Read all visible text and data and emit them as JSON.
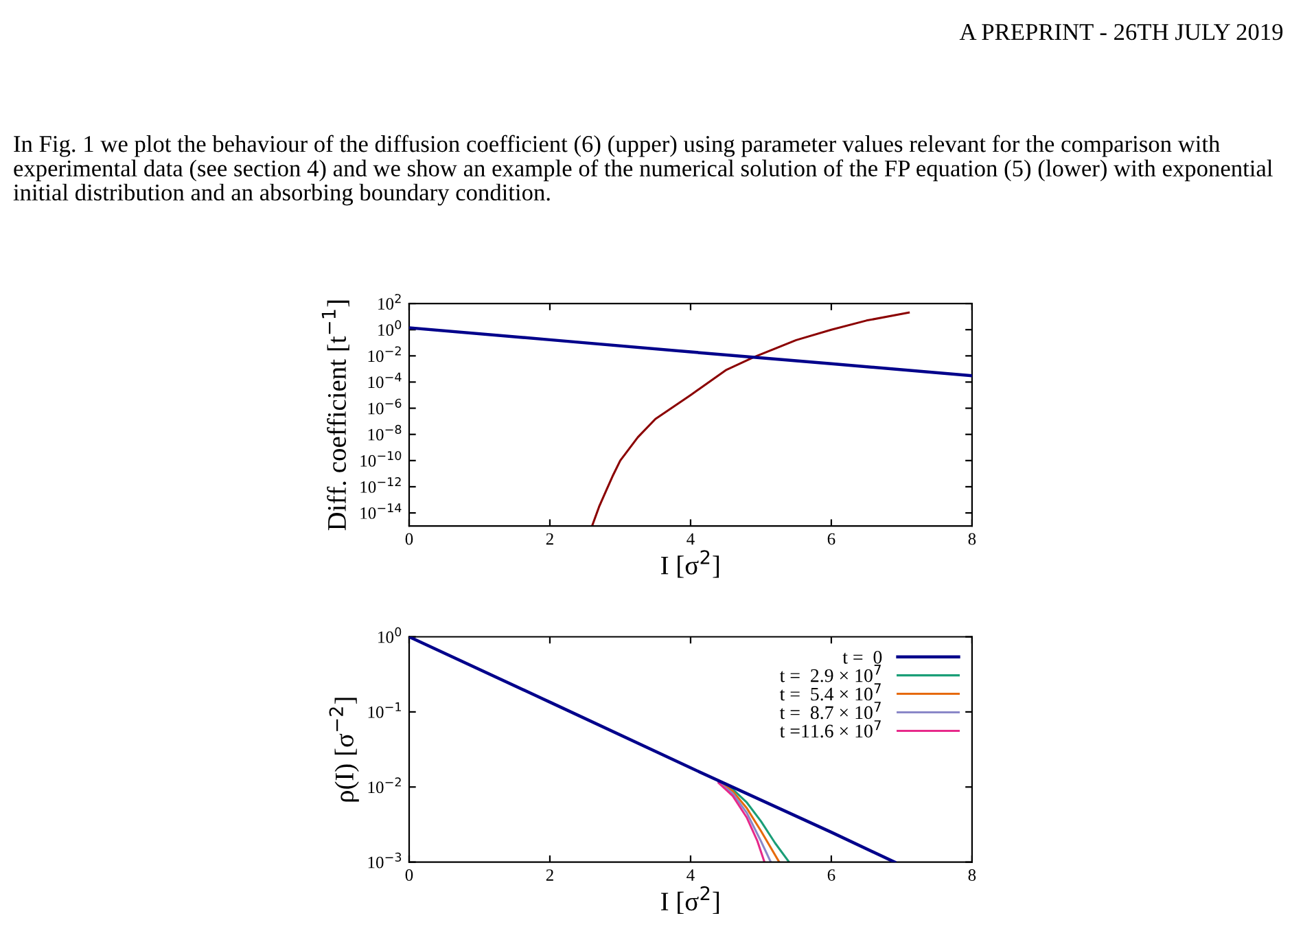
{
  "chart_data": [
    {
      "type": "line",
      "xlabel": "I [σ$^{2}$]",
      "ylabel": "Diff. coefficient [t$^{−1}$]",
      "log": "y",
      "xlim": [
        0,
        8
      ],
      "xticks": [
        0,
        2,
        4,
        6,
        8
      ],
      "ylim": [
        1e-15,
        100
      ],
      "yticks": [
        {
          "value": 100,
          "label": "10$^{2}$"
        },
        {
          "value": 1,
          "label": "10$^{0}$"
        },
        {
          "value": 0.01,
          "label": "10$^{−2}$"
        },
        {
          "value": 0.0001,
          "label": "10$^{−4}$"
        },
        {
          "value": 1e-06,
          "label": "10$^{−6}$"
        },
        {
          "value": 1e-08,
          "label": "10$^{−8}$"
        },
        {
          "value": 1e-10,
          "label": "10$^{−10}$"
        },
        {
          "value": 1e-12,
          "label": "10$^{−12}$"
        },
        {
          "value": 1e-14,
          "label": "10$^{−14}$"
        }
      ],
      "grid": false,
      "legend": false,
      "line_style": "solid",
      "marker": "none",
      "annotations": [
        "A PREPRINT - 26TH JULY 2019",
        "In Fig. 1 we plot the behaviour of the diffusion coefficient (6) (upper) using parameter values relevant for the comparison with experimental data (see section 4) and we show an example of the numerical solution of the FP equation (5) (lower) with exponential initial distribution and an absorbing boundary condition."
      ],
      "series": [
        {
          "color": "#00008b",
          "x": [
            0,
            2,
            4,
            6,
            8
          ],
          "values": [
            1.4,
            0.17,
            0.02,
            0.0025,
            0.0003
          ]
        },
        {
          "color": "#8b0000",
          "x": [
            2.6,
            2.7,
            2.8,
            2.9,
            3.0,
            3.25,
            3.5,
            4.0,
            4.5,
            4.9,
            5.5,
            6.0,
            6.5,
            7.1
          ],
          "values": [
            1e-15,
            3e-14,
            5e-13,
            8e-12,
            1e-10,
            6e-09,
            1.5e-07,
            1e-05,
            0.0008,
            0.008,
            0.16,
            1,
            5,
            20
          ]
        }
      ]
    },
    {
      "type": "line",
      "xlabel": "I [σ$^{2}$]",
      "ylabel": "ρ(I) [σ$^{−2}$]",
      "log": "y",
      "xlim": [
        0,
        8
      ],
      "xticks": [
        0,
        2,
        4,
        6,
        8
      ],
      "ylim": [
        0.001,
        1
      ],
      "yticks": [
        {
          "value": 1,
          "label": "10$^{0}$"
        },
        {
          "value": 0.1,
          "label": "10$^{−1}$"
        },
        {
          "value": 0.01,
          "label": "10$^{−2}$"
        },
        {
          "value": 0.001,
          "label": "10$^{−3}$"
        }
      ],
      "grid": false,
      "legend": "top right",
      "line_style": "solid",
      "marker": "none",
      "series": [
        {
          "name": "t =  0",
          "color": "#00008b",
          "x": [
            0,
            2,
            4,
            6,
            6.9
          ],
          "values": [
            1,
            0.135,
            0.018,
            0.0025,
            0.001
          ]
        },
        {
          "name": "t =  2.9 × 10$^{7}$",
          "color": "#1a9e77",
          "x": [
            4.4,
            4.6,
            4.8,
            5.0,
            5.2,
            5.4
          ],
          "values": [
            0.0117,
            0.0093,
            0.0062,
            0.0035,
            0.0018,
            0.001
          ]
        },
        {
          "name": "t =  5.4 × 10$^{7}$",
          "color": "#e66a0c",
          "x": [
            4.4,
            4.6,
            4.8,
            5.0,
            5.26
          ],
          "values": [
            0.0117,
            0.0088,
            0.0052,
            0.0026,
            0.001
          ]
        },
        {
          "name": "t =  8.7 × 10$^{7}$",
          "color": "#8a87c8",
          "x": [
            4.4,
            4.6,
            4.8,
            5.0,
            5.14
          ],
          "values": [
            0.0115,
            0.0082,
            0.0045,
            0.0019,
            0.001
          ]
        },
        {
          "name": "t =11.6 × 10$^{7}$",
          "color": "#e7298a",
          "x": [
            4.4,
            4.6,
            4.8,
            4.95,
            5.05
          ],
          "values": [
            0.0113,
            0.0076,
            0.0039,
            0.0019,
            0.001
          ]
        }
      ]
    }
  ]
}
